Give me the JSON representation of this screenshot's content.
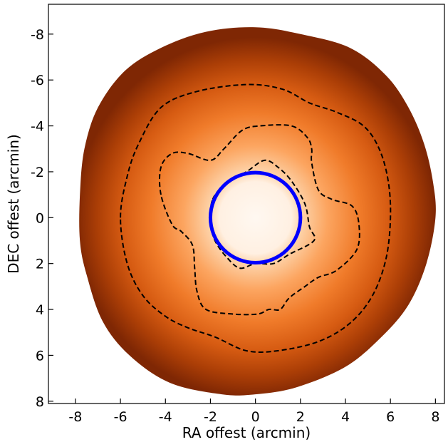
{
  "chart_data": {
    "type": "heatmap",
    "title": "",
    "xlabel": "RA offest (arcmin)",
    "ylabel": "DEC offest (arcmin)",
    "xlim": [
      -9.2,
      8.4
    ],
    "ylim": [
      8.1,
      -9.3
    ],
    "y_axis_inverted": true,
    "xticks": [
      -8,
      -6,
      -4,
      -2,
      0,
      2,
      4,
      6,
      8
    ],
    "yticks": [
      -8,
      -6,
      -4,
      -2,
      0,
      2,
      4,
      6,
      8
    ],
    "xtick_labels": [
      "-8",
      "-6",
      "-4",
      "-2",
      "0",
      "2",
      "4",
      "6",
      "8"
    ],
    "ytick_labels": [
      "-8",
      "-6",
      "-4",
      "-2",
      "0",
      "2",
      "4",
      "6",
      "8"
    ],
    "colormap": "Oranges (dark brown at edge, near white at center)",
    "colors": {
      "edge": "#7f2704",
      "mid": "#e05a10",
      "light": "#fdb271",
      "center": "#fff5eb",
      "circle": "#0000ff",
      "contour": "#000000"
    },
    "map_boundary": [
      [
        -7.8,
        -1
      ],
      [
        -7.8,
        1
      ],
      [
        -7.5,
        2.5
      ],
      [
        -6.8,
        4.5
      ],
      [
        -5.6,
        6.0
      ],
      [
        -3.8,
        7.2
      ],
      [
        -1.5,
        7.7
      ],
      [
        0,
        7.7
      ],
      [
        1.8,
        7.4
      ],
      [
        4.0,
        6.5
      ],
      [
        5.6,
        5.2
      ],
      [
        6.8,
        3.8
      ],
      [
        7.6,
        2.0
      ],
      [
        8.0,
        0
      ],
      [
        7.9,
        -1.5
      ],
      [
        7.5,
        -3.2
      ],
      [
        6.8,
        -4.8
      ],
      [
        5.8,
        -6.2
      ],
      [
        4.2,
        -7.4
      ],
      [
        2.0,
        -8.0
      ],
      [
        0,
        -8.3
      ],
      [
        -2.2,
        -8.1
      ],
      [
        -4.2,
        -7.4
      ],
      [
        -5.8,
        -6.4
      ],
      [
        -7.0,
        -4.8
      ],
      [
        -7.6,
        -3.0
      ]
    ],
    "circle": {
      "center": [
        0,
        0
      ],
      "radius": 2.0
    },
    "contours": [
      [
        [
          -6,
          0
        ],
        [
          -5.7,
          -1.8
        ],
        [
          -5.2,
          -3.2
        ],
        [
          -4.2,
          -4.8
        ],
        [
          -2.6,
          -5.5
        ],
        [
          -0.4,
          -5.8
        ],
        [
          1.2,
          -5.6
        ],
        [
          2.4,
          -5.0
        ],
        [
          3.6,
          -4.6
        ],
        [
          4.8,
          -4.0
        ],
        [
          5.5,
          -3.0
        ],
        [
          5.9,
          -1.6
        ],
        [
          6.0,
          0
        ],
        [
          5.8,
          1.8
        ],
        [
          5.2,
          3.4
        ],
        [
          4.2,
          4.6
        ],
        [
          2.8,
          5.4
        ],
        [
          1.0,
          5.8
        ],
        [
          -0.4,
          5.8
        ],
        [
          -1.8,
          5.2
        ],
        [
          -3.0,
          4.8
        ],
        [
          -4.0,
          4.3
        ],
        [
          -5.0,
          3.4
        ],
        [
          -5.7,
          2.0
        ]
      ],
      [
        [
          -4.2,
          -1.0
        ],
        [
          -4.2,
          -2.2
        ],
        [
          -3.7,
          -2.8
        ],
        [
          -3.0,
          -2.8
        ],
        [
          -2.0,
          -2.5
        ],
        [
          -1.4,
          -3.0
        ],
        [
          -0.6,
          -3.8
        ],
        [
          0.2,
          -4.0
        ],
        [
          1.6,
          -4.0
        ],
        [
          2.3,
          -3.5
        ],
        [
          2.5,
          -3.0
        ],
        [
          2.5,
          -2.4
        ],
        [
          2.8,
          -1.2
        ],
        [
          3.4,
          -0.8
        ],
        [
          4.3,
          -0.5
        ],
        [
          4.6,
          0.3
        ],
        [
          4.5,
          1.4
        ],
        [
          3.6,
          2.3
        ],
        [
          2.8,
          2.6
        ],
        [
          2.2,
          3.0
        ],
        [
          1.5,
          3.5
        ],
        [
          1.1,
          4.0
        ],
        [
          0.6,
          4.0
        ],
        [
          0.1,
          4.2
        ],
        [
          -1.0,
          4.2
        ],
        [
          -2.2,
          4.0
        ],
        [
          -2.6,
          3.2
        ],
        [
          -2.7,
          2.2
        ],
        [
          -2.8,
          1.2
        ],
        [
          -3.3,
          0.6
        ],
        [
          -3.7,
          0.3
        ]
      ],
      [
        [
          -1.9,
          -0.8
        ],
        [
          -1.3,
          -1.5
        ],
        [
          -0.4,
          -2.0
        ],
        [
          0.4,
          -2.5
        ],
        [
          1.0,
          -2.2
        ],
        [
          1.6,
          -1.6
        ],
        [
          2.2,
          -0.6
        ],
        [
          2.4,
          0.4
        ],
        [
          2.6,
          1.0
        ],
        [
          1.5,
          1.6
        ],
        [
          0.8,
          2.0
        ],
        [
          0.0,
          2.0
        ],
        [
          -0.7,
          2.2
        ],
        [
          -1.3,
          1.7
        ],
        [
          -1.8,
          1.0
        ],
        [
          -2.0,
          0.2
        ]
      ]
    ]
  }
}
